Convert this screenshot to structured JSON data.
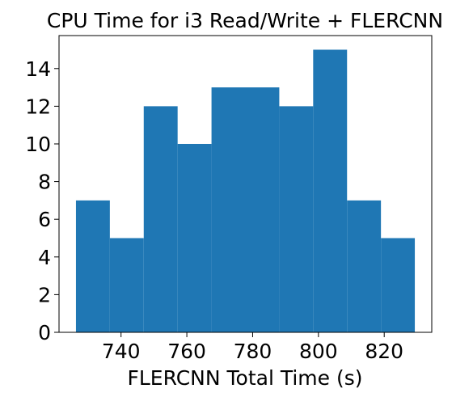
{
  "chart_data": {
    "type": "bar",
    "subtype": "histogram",
    "title": "CPU Time for i3 Read/Write + FLERCNN",
    "xlabel": "FLERCNN Total Time (s)",
    "ylabel": "",
    "bin_edges": [
      726.3,
      736.6,
      746.9,
      757.2,
      767.5,
      777.8,
      788.1,
      798.4,
      808.7,
      819.0,
      829.3
    ],
    "counts": [
      7,
      5,
      12,
      10,
      13,
      13,
      12,
      15,
      7,
      5
    ],
    "xlim": [
      721.15,
      834.45
    ],
    "ylim": [
      0,
      15.75
    ],
    "xticks": [
      740,
      760,
      780,
      800,
      820
    ],
    "xtick_labels": [
      "740",
      "760",
      "780",
      "800",
      "820"
    ],
    "yticks": [
      0,
      2,
      4,
      6,
      8,
      10,
      12,
      14
    ],
    "ytick_labels": [
      "0",
      "2",
      "4",
      "6",
      "8",
      "10",
      "12",
      "14"
    ],
    "bar_color": "#1f77b4",
    "grid": false,
    "legend": "none"
  }
}
